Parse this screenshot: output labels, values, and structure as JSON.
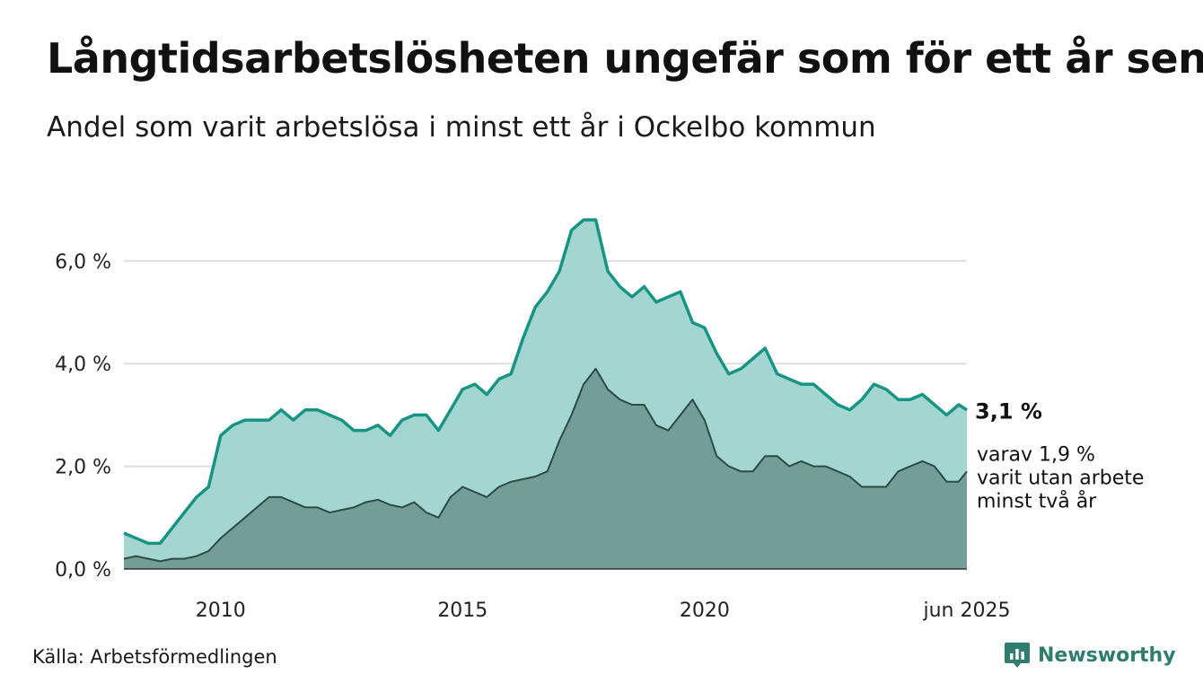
{
  "title": "Långtidsarbetslösheten ungefär som för ett år sen",
  "subtitle": "Andel som varit arbetslösa i minst ett år i Ockelbo kommun",
  "source": "Källa: Arbetsförmedlingen",
  "brand": {
    "name": "Newsworthy",
    "icon": "newsworthy-logo-icon"
  },
  "colors": {
    "total_fill": "#a3d6d0",
    "total_line": "#179483",
    "sub_fill": "#739e97",
    "sub_line": "#2e4a45",
    "grid": "#dddddd",
    "brand": "#2e7d6f"
  },
  "chart_data": {
    "type": "area",
    "x_unit": "year",
    "xlim": [
      2008.0,
      2025.42
    ],
    "ylim": [
      0,
      7.5
    ],
    "yticks": [
      0,
      2,
      4,
      6
    ],
    "ytick_labels": [
      "0,0 %",
      "2,0 %",
      "4,0 %",
      "6,0 %"
    ],
    "xticks": [
      2010,
      2015,
      2020,
      2025.42
    ],
    "xtick_labels": [
      "2010",
      "2015",
      "2020",
      "jun 2025"
    ],
    "grid": "horizontal",
    "series": [
      {
        "id": "total",
        "label": "3,1 %",
        "x": [
          2008.0,
          2008.25,
          2008.5,
          2008.75,
          2009.0,
          2009.25,
          2009.5,
          2009.75,
          2010.0,
          2010.25,
          2010.5,
          2010.75,
          2011.0,
          2011.25,
          2011.5,
          2011.75,
          2012.0,
          2012.25,
          2012.5,
          2012.75,
          2013.0,
          2013.25,
          2013.5,
          2013.75,
          2014.0,
          2014.25,
          2014.5,
          2014.75,
          2015.0,
          2015.25,
          2015.5,
          2015.75,
          2016.0,
          2016.25,
          2016.5,
          2016.75,
          2017.0,
          2017.25,
          2017.5,
          2017.75,
          2018.0,
          2018.25,
          2018.5,
          2018.75,
          2019.0,
          2019.25,
          2019.5,
          2019.75,
          2020.0,
          2020.25,
          2020.5,
          2020.75,
          2021.0,
          2021.25,
          2021.5,
          2021.75,
          2022.0,
          2022.25,
          2022.5,
          2022.75,
          2023.0,
          2023.25,
          2023.5,
          2023.75,
          2024.0,
          2024.25,
          2024.5,
          2024.75,
          2025.0,
          2025.25,
          2025.42
        ],
        "values": [
          0.7,
          0.6,
          0.5,
          0.5,
          0.8,
          1.1,
          1.4,
          1.6,
          2.6,
          2.8,
          2.9,
          2.9,
          2.9,
          3.1,
          2.9,
          3.1,
          3.1,
          3.0,
          2.9,
          2.7,
          2.7,
          2.8,
          2.6,
          2.9,
          3.0,
          3.0,
          2.7,
          3.1,
          3.5,
          3.6,
          3.4,
          3.7,
          3.8,
          4.5,
          5.1,
          5.4,
          5.8,
          6.6,
          6.8,
          6.8,
          5.8,
          5.5,
          5.3,
          5.5,
          5.2,
          5.3,
          5.4,
          4.8,
          4.7,
          4.2,
          3.8,
          3.9,
          4.1,
          4.3,
          3.8,
          3.7,
          3.6,
          3.6,
          3.4,
          3.2,
          3.1,
          3.3,
          3.6,
          3.5,
          3.3,
          3.3,
          3.4,
          3.2,
          3.0,
          3.2,
          3.1
        ]
      },
      {
        "id": "two-year",
        "label": "varav 1,9 % varit utan arbete minst två år",
        "label_lines": [
          "varav 1,9 %",
          "varit utan arbete",
          "minst två år"
        ],
        "x": [
          2008.0,
          2008.25,
          2008.5,
          2008.75,
          2009.0,
          2009.25,
          2009.5,
          2009.75,
          2010.0,
          2010.25,
          2010.5,
          2010.75,
          2011.0,
          2011.25,
          2011.5,
          2011.75,
          2012.0,
          2012.25,
          2012.5,
          2012.75,
          2013.0,
          2013.25,
          2013.5,
          2013.75,
          2014.0,
          2014.25,
          2014.5,
          2014.75,
          2015.0,
          2015.25,
          2015.5,
          2015.75,
          2016.0,
          2016.25,
          2016.5,
          2016.75,
          2017.0,
          2017.25,
          2017.5,
          2017.75,
          2018.0,
          2018.25,
          2018.5,
          2018.75,
          2019.0,
          2019.25,
          2019.5,
          2019.75,
          2020.0,
          2020.25,
          2020.5,
          2020.75,
          2021.0,
          2021.25,
          2021.5,
          2021.75,
          2022.0,
          2022.25,
          2022.5,
          2022.75,
          2023.0,
          2023.25,
          2023.5,
          2023.75,
          2024.0,
          2024.25,
          2024.5,
          2024.75,
          2025.0,
          2025.25,
          2025.42
        ],
        "values": [
          0.2,
          0.25,
          0.2,
          0.15,
          0.2,
          0.2,
          0.25,
          0.35,
          0.6,
          0.8,
          1.0,
          1.2,
          1.4,
          1.4,
          1.3,
          1.2,
          1.2,
          1.1,
          1.15,
          1.2,
          1.3,
          1.35,
          1.25,
          1.2,
          1.3,
          1.1,
          1.0,
          1.4,
          1.6,
          1.5,
          1.4,
          1.6,
          1.7,
          1.75,
          1.8,
          1.9,
          2.5,
          3.0,
          3.6,
          3.9,
          3.5,
          3.3,
          3.2,
          3.2,
          2.8,
          2.7,
          3.0,
          3.3,
          2.9,
          2.2,
          2.0,
          1.9,
          1.9,
          2.2,
          2.2,
          2.0,
          2.1,
          2.0,
          2.0,
          1.9,
          1.8,
          1.6,
          1.6,
          1.6,
          1.9,
          2.0,
          2.1,
          2.0,
          1.7,
          1.7,
          1.9
        ]
      }
    ]
  }
}
